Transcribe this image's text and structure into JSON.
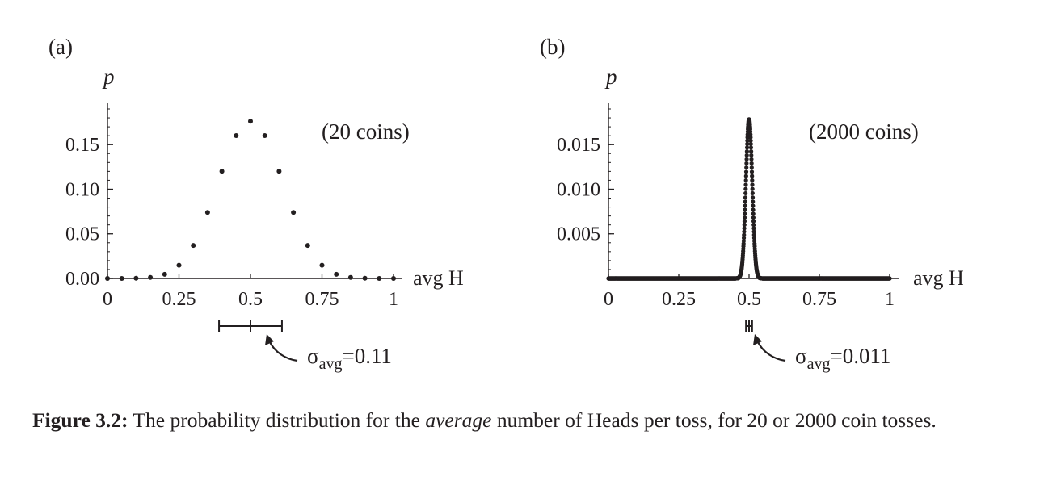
{
  "chart_data": [
    {
      "type": "scatter",
      "panel_label": "(a)",
      "ylabel": "p",
      "xlabel": "avg H",
      "annotation": "(20 coins)",
      "xlim": [
        0,
        1
      ],
      "ylim": [
        0,
        0.19
      ],
      "xticks": [
        0,
        0.25,
        0.5,
        0.75,
        1
      ],
      "xtick_labels": [
        "0",
        "0.25",
        "0.5",
        "0.75",
        "1"
      ],
      "yticks": [
        0,
        0.05,
        0.1,
        0.15
      ],
      "ytick_labels": [
        "0.00",
        "0.05",
        "0.10",
        "0.15"
      ],
      "x": [
        0,
        0.05,
        0.1,
        0.15,
        0.2,
        0.25,
        0.3,
        0.35,
        0.4,
        0.45,
        0.5,
        0.55,
        0.6,
        0.65,
        0.7,
        0.75,
        0.8,
        0.85,
        0.9,
        0.95,
        1
      ],
      "y": [
        1e-06,
        1.9e-05,
        0.000181,
        0.001087,
        0.004621,
        0.014786,
        0.036964,
        0.073929,
        0.120134,
        0.160179,
        0.176197,
        0.160179,
        0.120134,
        0.073929,
        0.036964,
        0.014786,
        0.004621,
        0.001087,
        0.000181,
        1.9e-05,
        1e-06
      ],
      "sigma": {
        "center": 0.5,
        "value": 0.11,
        "symbol": "σ",
        "subscript": "avg",
        "equals": "=",
        "value_text": "0.11"
      }
    },
    {
      "type": "scatter",
      "panel_label": "(b)",
      "ylabel": "p",
      "xlabel": "avg H",
      "annotation": "(2000 coins)",
      "n_tosses": 2000,
      "xlim": [
        0,
        1
      ],
      "ylim": [
        0,
        0.019
      ],
      "xticks": [
        0,
        0.25,
        0.5,
        0.75,
        1
      ],
      "xtick_labels": [
        "0",
        "0.25",
        "0.5",
        "0.75",
        "1"
      ],
      "yticks": [
        0.005,
        0.01,
        0.015
      ],
      "ytick_labels": [
        "0.005",
        "0.010",
        "0.015"
      ],
      "peak_y": 0.0178,
      "sigma": {
        "center": 0.5,
        "value": 0.011,
        "symbol": "σ",
        "subscript": "avg",
        "equals": "=",
        "value_text": "0.011"
      }
    }
  ],
  "caption": {
    "label": "Figure 3.2:",
    "text_before": " The probability distribution for the ",
    "emphasis": "average",
    "text_after": " number of Heads per toss, for 20 or 2000 coin tosses."
  }
}
